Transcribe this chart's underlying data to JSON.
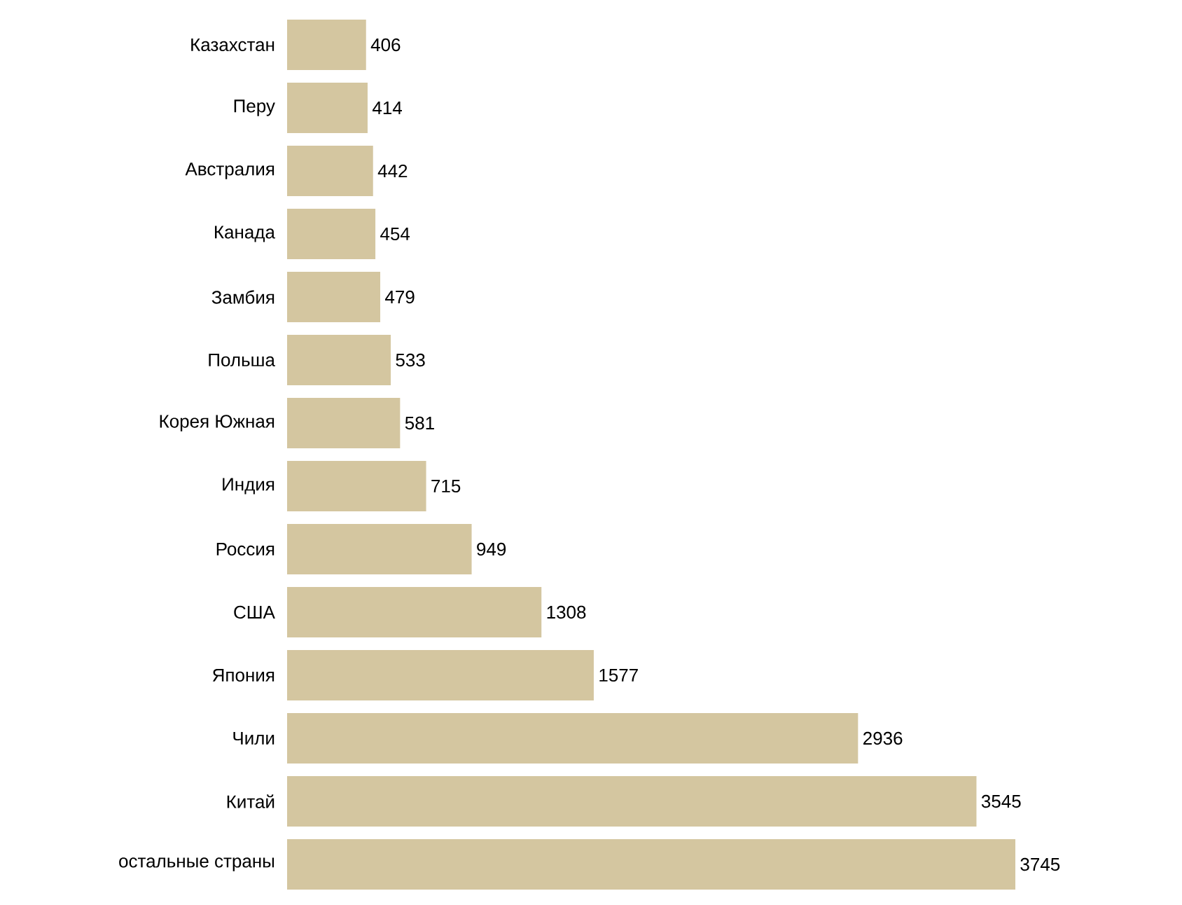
{
  "chart_data": {
    "type": "bar",
    "orientation": "horizontal",
    "categories": [
      "Казахстан",
      "Перу",
      "Австралия",
      "Канада",
      "Замбия",
      "Польша",
      "Корея Южная",
      "Индия",
      "Россия",
      "США",
      "Япония",
      "Чили",
      "Китай",
      "остальные страны"
    ],
    "values": [
      406,
      414,
      442,
      454,
      479,
      533,
      581,
      715,
      949,
      1308,
      1577,
      2936,
      3545,
      3745
    ],
    "color": "#d4c6a0",
    "data_labels": true
  }
}
